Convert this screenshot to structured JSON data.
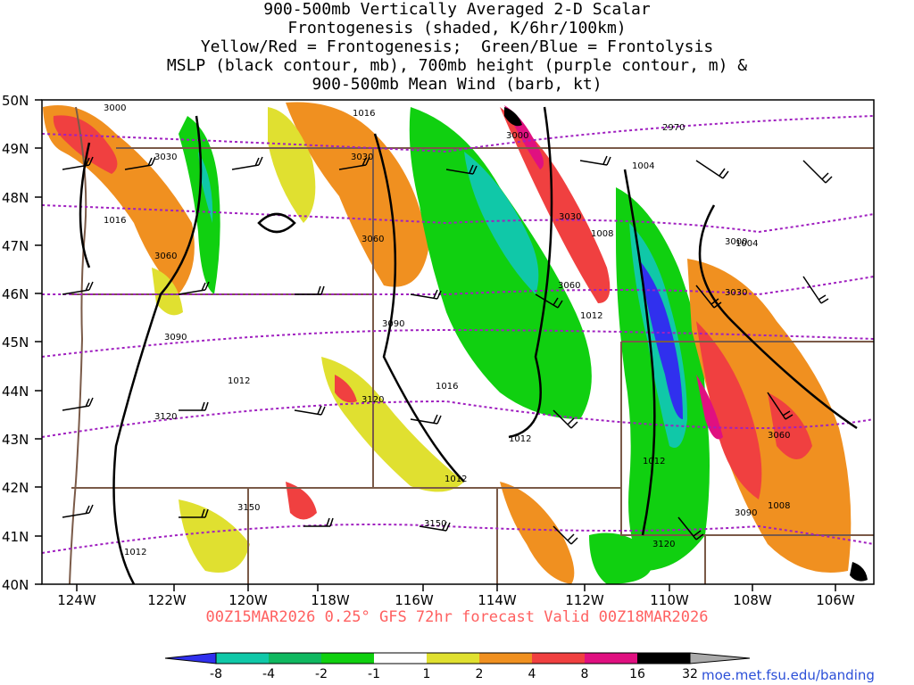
{
  "title": {
    "lines": [
      "900-500mb Vertically Averaged 2-D Scalar",
      "Frontogenesis (shaded, K/6hr/100km)",
      "Yellow/Red = Frontogenesis;  Green/Blue = Frontolysis",
      "MSLP (black contour, mb), 700mb height (purple contour, m) &",
      "900-500mb Mean Wind (barb, kt)"
    ]
  },
  "axes": {
    "lat_labels": [
      "50N",
      "49N",
      "48N",
      "47N",
      "46N",
      "45N",
      "44N",
      "43N",
      "42N",
      "41N",
      "40N"
    ],
    "lon_labels": [
      "124W",
      "122W",
      "120W",
      "118W",
      "116W",
      "114W",
      "112W",
      "110W",
      "108W",
      "106W"
    ]
  },
  "colors": {
    "blue": "#3030ee",
    "teal": "#10c8a8",
    "mid_green": "#10b860",
    "green": "#10d010",
    "yellow": "#e0e030",
    "orange": "#f09020",
    "red": "#f04040",
    "magenta": "#e01080",
    "black": "#000000",
    "gray": "#aaaaaa",
    "height_contour": "#a020c0",
    "borders": "#7a5a48",
    "mslp_contour": "#000000"
  },
  "mslp_labels": [
    "1016",
    "1016",
    "1004",
    "1008",
    "1004",
    "1012",
    "1012",
    "1016",
    "1012",
    "1012",
    "1012",
    "1008",
    "1012"
  ],
  "height_labels": [
    "3000",
    "3030",
    "3030",
    "2970",
    "3000",
    "3030",
    "3060",
    "3060",
    "3000",
    "3060",
    "3030",
    "3090",
    "3090",
    "3120",
    "3120",
    "3060",
    "3150",
    "3150",
    "3090",
    "3120"
  ],
  "footer": "00Z15MAR2026 0.25° GFS 72hr forecast Valid 00Z18MAR2026",
  "colorbar": {
    "labels": [
      "-8",
      "-4",
      "-2",
      "-1",
      "1",
      "2",
      "4",
      "8",
      "16",
      "32"
    ]
  },
  "credit": "moe.met.fsu.edu/banding"
}
